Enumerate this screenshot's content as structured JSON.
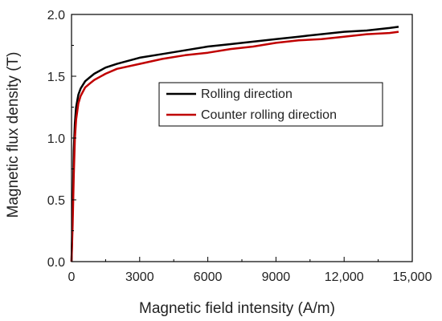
{
  "chart_data": {
    "type": "line",
    "xlabel": "Magnetic field intensity (A/m)",
    "ylabel": "Magnetic flux density (T)",
    "xlim": [
      0,
      15000
    ],
    "ylim": [
      0,
      2.0
    ],
    "x_ticks": [
      {
        "value": 0,
        "label": "0"
      },
      {
        "value": 3000,
        "label": "3000"
      },
      {
        "value": 6000,
        "label": "6000"
      },
      {
        "value": 9000,
        "label": "9000"
      },
      {
        "value": 12000,
        "label": "12,000"
      },
      {
        "value": 15000,
        "label": "15,000"
      }
    ],
    "y_ticks": [
      {
        "value": 0,
        "label": "0.0"
      },
      {
        "value": 0.5,
        "label": "0.5"
      },
      {
        "value": 1.0,
        "label": "1.0"
      },
      {
        "value": 1.5,
        "label": "1.5"
      },
      {
        "value": 2.0,
        "label": "2.0"
      }
    ],
    "grid": false,
    "legend_position": "upper-middle",
    "series": [
      {
        "name": "Rolling direction",
        "color": "#000000",
        "points": [
          [
            0,
            0
          ],
          [
            50,
            0.4
          ],
          [
            100,
            0.9
          ],
          [
            150,
            1.12
          ],
          [
            200,
            1.25
          ],
          [
            300,
            1.35
          ],
          [
            400,
            1.4
          ],
          [
            600,
            1.46
          ],
          [
            800,
            1.49
          ],
          [
            1000,
            1.52
          ],
          [
            1500,
            1.57
          ],
          [
            2000,
            1.6
          ],
          [
            3000,
            1.65
          ],
          [
            4000,
            1.68
          ],
          [
            5000,
            1.71
          ],
          [
            6000,
            1.74
          ],
          [
            7000,
            1.76
          ],
          [
            8000,
            1.78
          ],
          [
            9000,
            1.8
          ],
          [
            10000,
            1.82
          ],
          [
            11000,
            1.84
          ],
          [
            12000,
            1.86
          ],
          [
            13000,
            1.87
          ],
          [
            14000,
            1.89
          ],
          [
            14400,
            1.9
          ]
        ]
      },
      {
        "name": "Counter rolling direction",
        "color": "#c00000",
        "points": [
          [
            0,
            0
          ],
          [
            50,
            0.3
          ],
          [
            100,
            0.7
          ],
          [
            150,
            1.0
          ],
          [
            200,
            1.15
          ],
          [
            300,
            1.28
          ],
          [
            400,
            1.34
          ],
          [
            600,
            1.41
          ],
          [
            800,
            1.44
          ],
          [
            1000,
            1.47
          ],
          [
            1500,
            1.52
          ],
          [
            2000,
            1.56
          ],
          [
            3000,
            1.6
          ],
          [
            4000,
            1.64
          ],
          [
            5000,
            1.67
          ],
          [
            6000,
            1.69
          ],
          [
            7000,
            1.72
          ],
          [
            8000,
            1.74
          ],
          [
            9000,
            1.77
          ],
          [
            10000,
            1.79
          ],
          [
            11000,
            1.8
          ],
          [
            12000,
            1.82
          ],
          [
            13000,
            1.84
          ],
          [
            14000,
            1.85
          ],
          [
            14400,
            1.86
          ]
        ]
      }
    ]
  }
}
